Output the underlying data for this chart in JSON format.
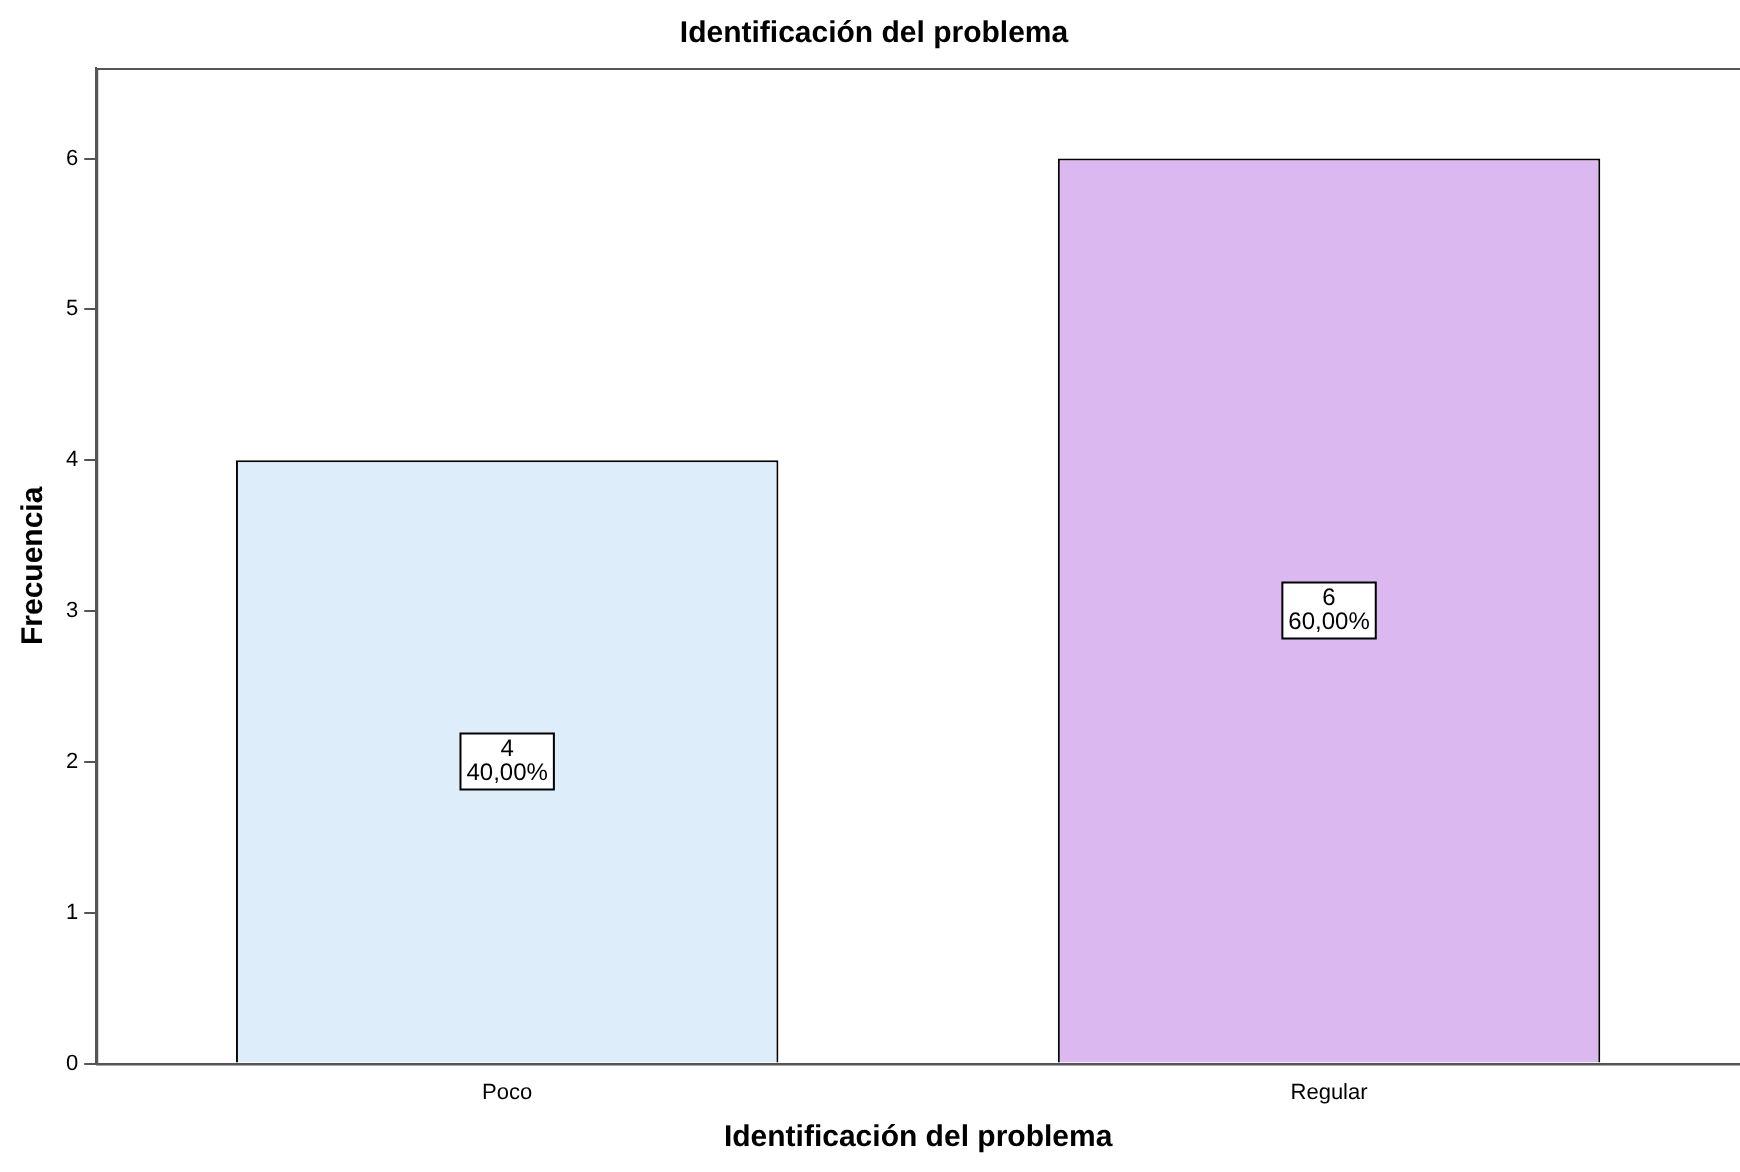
{
  "chart_data": {
    "type": "bar",
    "title": "Identificación del problema",
    "xlabel": "Identificación del problema",
    "ylabel": "Frecuencia",
    "categories": [
      "Poco",
      "Regular"
    ],
    "values": [
      4,
      6
    ],
    "colors": [
      "#deedfa",
      "#dcb8f0"
    ],
    "value_labels": [
      "4\n40,00%",
      "6\n60,00%"
    ],
    "ylim": [
      0,
      6.6
    ],
    "yticks": [
      0,
      1,
      2,
      3,
      4,
      5,
      6
    ],
    "grid": false,
    "legend": false
  }
}
